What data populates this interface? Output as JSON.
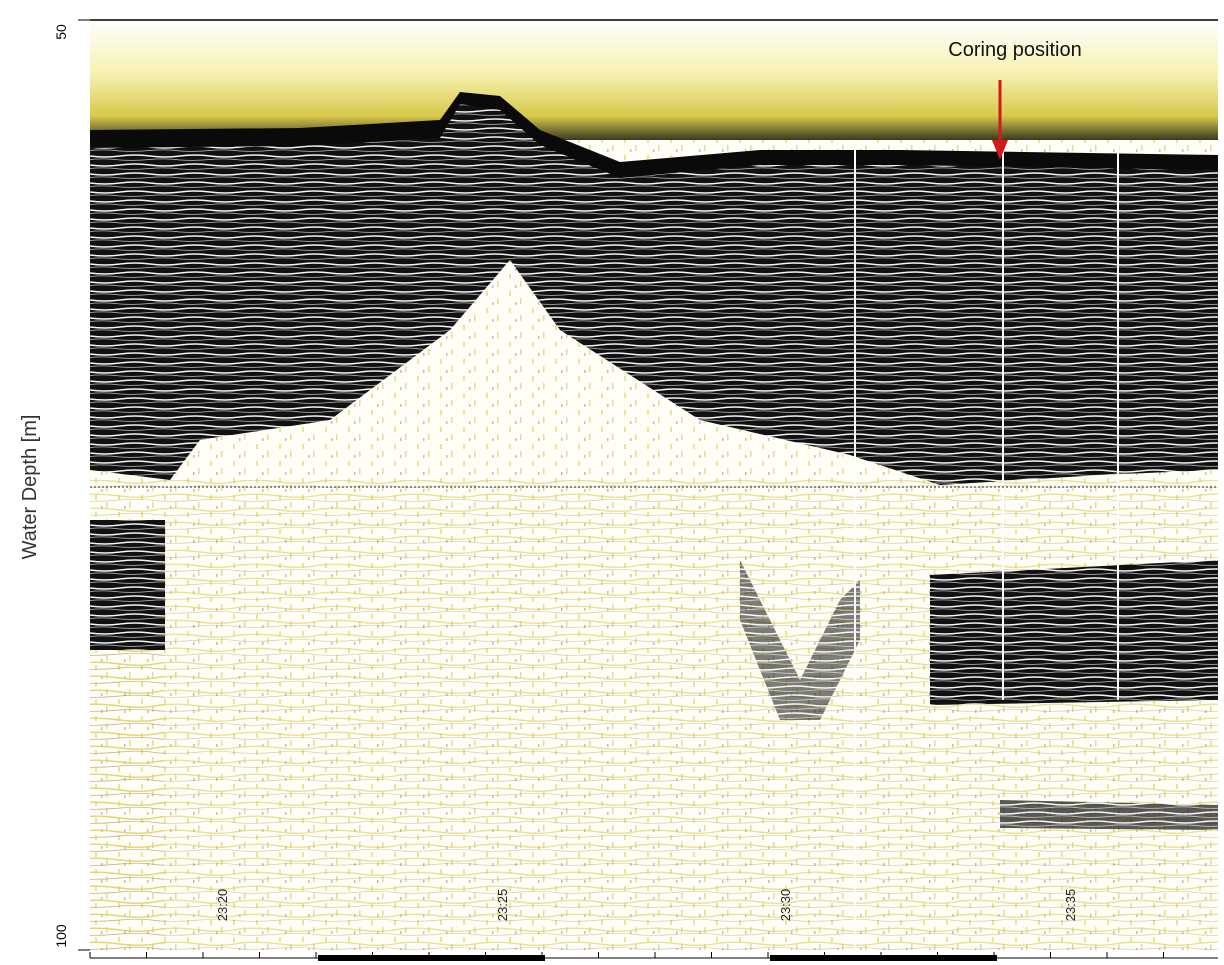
{
  "y_axis": {
    "label": "Water Depth [m]",
    "ticks": [
      50,
      100
    ]
  },
  "time_labels": [
    "23:20",
    "23:25",
    "23:30",
    "23:35"
  ],
  "annotation": "Coring position"
}
